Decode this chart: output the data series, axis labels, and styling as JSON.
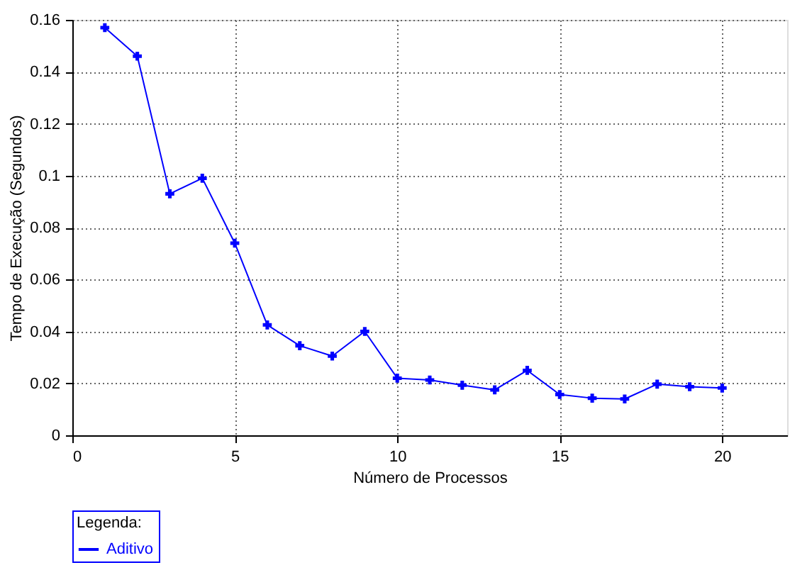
{
  "chart_data": {
    "type": "line",
    "xlabel": "Número de Processos",
    "ylabel": "Tempo de Execução (Segundos)",
    "legend_title": "Legenda:",
    "x": [
      1,
      2,
      3,
      4,
      5,
      6,
      7,
      8,
      9,
      10,
      11,
      12,
      13,
      14,
      15,
      16,
      17,
      18,
      19,
      20
    ],
    "series": [
      {
        "name": "Aditivo",
        "color": "#0000ff",
        "values": [
          0.157,
          0.146,
          0.093,
          0.099,
          0.074,
          0.0425,
          0.0345,
          0.0305,
          0.04,
          0.022,
          0.0213,
          0.0193,
          0.0175,
          0.025,
          0.0157,
          0.0143,
          0.014,
          0.0197,
          0.0187,
          0.0182
        ]
      }
    ],
    "xlim": [
      0,
      22
    ],
    "xticks": [
      0,
      5,
      10,
      15,
      20
    ],
    "ylim": [
      0,
      0.16
    ],
    "yticks": [
      0,
      0.02,
      0.04,
      0.06,
      0.08,
      0.1,
      0.12,
      0.14,
      0.16
    ],
    "grid": true,
    "legend": "bottom",
    "marker": "cross",
    "line_style": "solid"
  }
}
